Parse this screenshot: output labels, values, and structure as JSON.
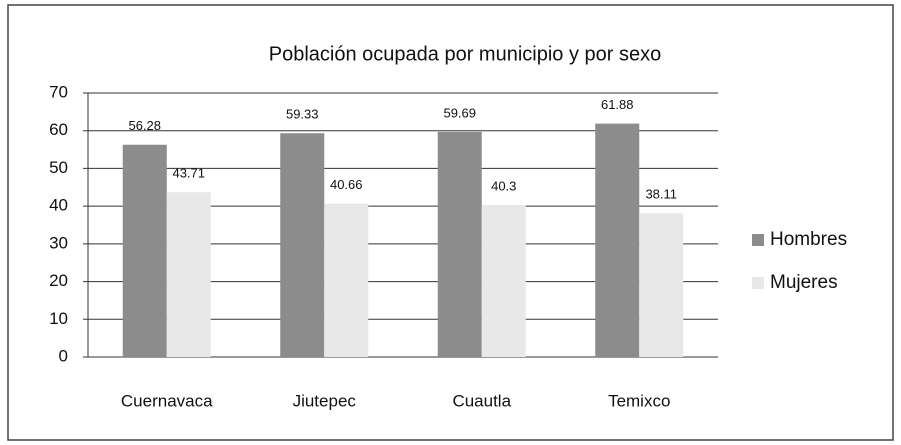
{
  "chart_data": {
    "type": "bar",
    "title": "Población ocupada por municipio y por sexo",
    "categories": [
      "Cuernavaca",
      "Jiutepec",
      "Cuautla",
      "Temixco"
    ],
    "series": [
      {
        "name": "Hombres",
        "color": "#8c8c8c",
        "values": [
          56.28,
          59.33,
          59.69,
          61.88
        ]
      },
      {
        "name": "Mujeres",
        "color": "#e8e8e8",
        "values": [
          43.71,
          40.66,
          40.3,
          38.11
        ]
      }
    ],
    "ylim": [
      0,
      70
    ],
    "yticks": [
      0,
      10,
      20,
      30,
      40,
      50,
      60,
      70
    ],
    "grid": true,
    "legend": "right",
    "data_labels": true
  }
}
